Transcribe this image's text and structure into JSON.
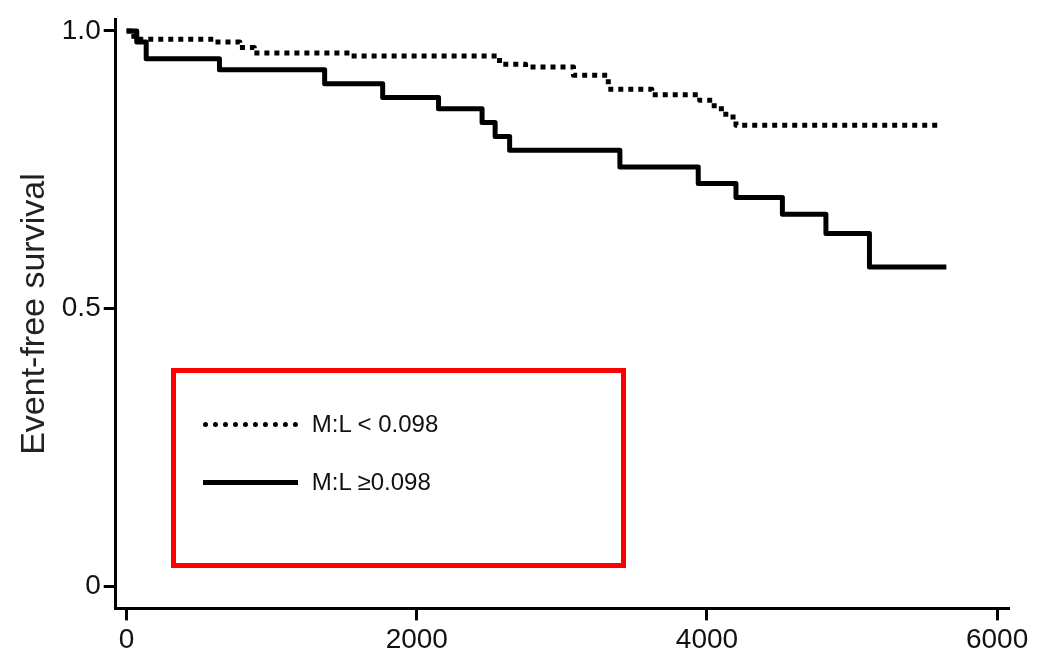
{
  "chart_data": {
    "type": "step",
    "ylabel": "Event-free survival",
    "xlim": [
      -75,
      6075
    ],
    "xticks": [
      0,
      2000,
      4000,
      6000
    ],
    "ylim": [
      -0.04,
      1.02
    ],
    "yticks": [
      {
        "value": 0,
        "label": "0"
      },
      {
        "value": 0.5,
        "label": "0.5"
      },
      {
        "value": 1,
        "label": "1.0"
      }
    ],
    "grid": false,
    "legend": "bottom left",
    "marker": "none",
    "series": [
      {
        "name": "M:L < 0.098",
        "color": "#000000",
        "line_style": "dotted",
        "x": [
          0,
          50,
          600,
          780,
          880,
          1540,
          2570,
          2750,
          3080,
          3320,
          3620,
          3950,
          4050,
          4130,
          4200,
          5600
        ],
        "values": [
          1.0,
          0.985,
          0.98,
          0.97,
          0.96,
          0.955,
          0.94,
          0.935,
          0.92,
          0.895,
          0.885,
          0.875,
          0.86,
          0.845,
          0.83,
          0.83
        ]
      },
      {
        "name": "M:L ≥0.098",
        "color": "#000000",
        "line_style": "solid",
        "x": [
          0,
          70,
          135,
          640,
          1365,
          1765,
          2150,
          2450,
          2540,
          2640,
          3400,
          3940,
          4200,
          4520,
          4820,
          5120,
          5650
        ],
        "values": [
          1.0,
          0.98,
          0.95,
          0.93,
          0.905,
          0.88,
          0.86,
          0.835,
          0.81,
          0.785,
          0.755,
          0.725,
          0.7,
          0.67,
          0.635,
          0.575,
          0.575
        ]
      }
    ]
  }
}
